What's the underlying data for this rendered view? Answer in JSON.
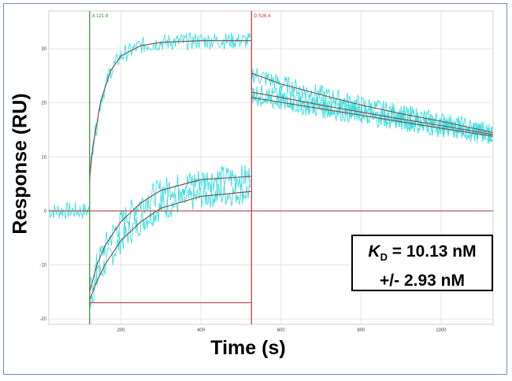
{
  "chart_data": {
    "type": "line",
    "ylabel": "Response (RU)",
    "xlabel": "Time (s)",
    "xlim": [
      20,
      1130
    ],
    "ylim": [
      -21,
      37
    ],
    "xticks": [
      200,
      400,
      600,
      800,
      1000
    ],
    "yticks": [
      30,
      20,
      10,
      0,
      -10,
      -20
    ],
    "grid": true,
    "markers": [
      {
        "label": "A 121.9",
        "x": 121.9,
        "color": "#2e8b2e"
      },
      {
        "label": "D 526.4",
        "x": 526.4,
        "color": "#d03030"
      }
    ],
    "series": [
      {
        "kind": "fit",
        "values": [
          [
            121.9,
            6
          ],
          [
            130,
            12
          ],
          [
            150,
            20.5
          ],
          [
            175,
            26
          ],
          [
            200,
            28.7
          ],
          [
            250,
            30.6
          ],
          [
            300,
            31.2
          ],
          [
            400,
            31.5
          ],
          [
            526,
            31.5
          ]
        ]
      },
      {
        "kind": "fit",
        "values": [
          [
            121.9,
            -15
          ],
          [
            140,
            -10
          ],
          [
            160,
            -6.5
          ],
          [
            200,
            -2
          ],
          [
            250,
            1.5
          ],
          [
            300,
            3.8
          ],
          [
            400,
            5.8
          ],
          [
            526,
            6.4
          ]
        ]
      },
      {
        "kind": "fit",
        "values": [
          [
            121.9,
            -16.5
          ],
          [
            140,
            -13
          ],
          [
            160,
            -10
          ],
          [
            200,
            -5.5
          ],
          [
            250,
            -2
          ],
          [
            300,
            0.5
          ],
          [
            400,
            2.7
          ],
          [
            526,
            3.6
          ]
        ]
      },
      {
        "kind": "fit",
        "values": [
          [
            121.9,
            -17
          ],
          [
            526,
            -17
          ]
        ]
      },
      {
        "kind": "fit",
        "values": [
          [
            526,
            25.5
          ],
          [
            600,
            23.5
          ],
          [
            700,
            21.5
          ],
          [
            800,
            19.6
          ],
          [
            900,
            18
          ],
          [
            1000,
            16.6
          ],
          [
            1130,
            14.5
          ]
        ]
      },
      {
        "kind": "fit",
        "values": [
          [
            526,
            22
          ],
          [
            600,
            21
          ],
          [
            700,
            19.6
          ],
          [
            800,
            18.3
          ],
          [
            900,
            17
          ],
          [
            1000,
            15.8
          ],
          [
            1130,
            14.1
          ]
        ]
      },
      {
        "kind": "fit",
        "values": [
          [
            526,
            21
          ],
          [
            600,
            20.1
          ],
          [
            700,
            18.9
          ],
          [
            800,
            17.7
          ],
          [
            900,
            16.5
          ],
          [
            1000,
            15.3
          ],
          [
            1130,
            13.8
          ]
        ]
      },
      {
        "kind": "fit",
        "values": [
          [
            20,
            0
          ],
          [
            1130,
            0
          ]
        ]
      }
    ],
    "annotation": {
      "kd_symbol": "K",
      "kd_subscript": "D",
      "kd_value": "= 10.13 nM",
      "kd_error": "+/- 2.93 nM"
    },
    "colors": {
      "raw_data": "#3fdede",
      "fit": "#7a4a4a",
      "baseline": "#b34747",
      "grid": "#e4e4e4",
      "association_marker": "#2e8b2e",
      "dissociation_marker": "#d03030"
    }
  }
}
